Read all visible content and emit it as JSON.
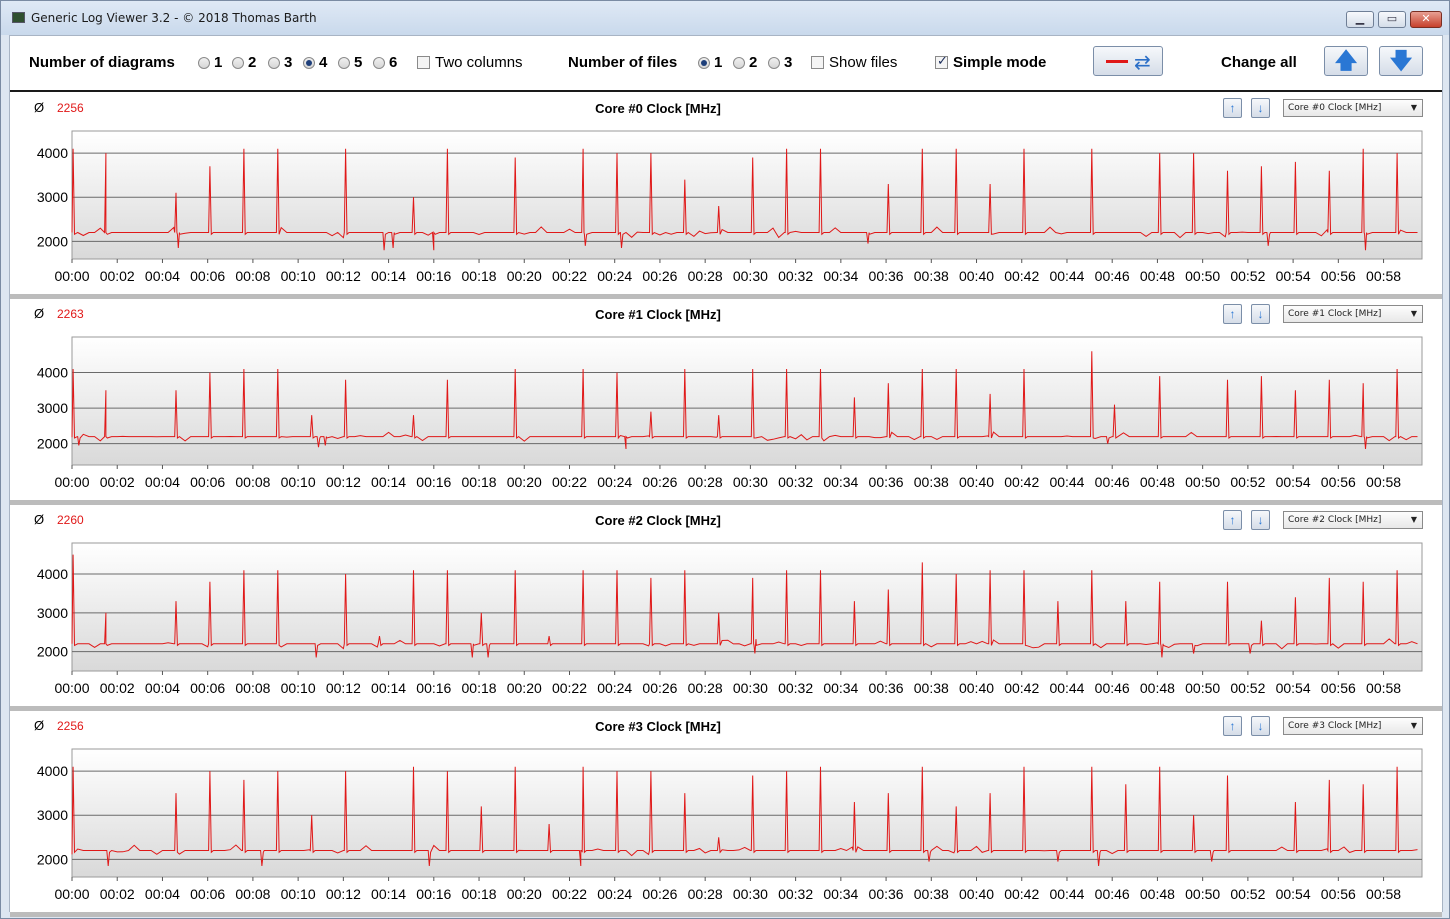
{
  "window": {
    "title": "Generic Log Viewer 3.2 - © 2018 Thomas Barth",
    "minimize_icon": "minimize-icon",
    "maximize_icon": "maximize-icon",
    "close_icon": "close-icon",
    "minimize_glyph": "▁",
    "maximize_glyph": "▭",
    "close_glyph": "✕"
  },
  "toolbar": {
    "diagrams_label": "Number of diagrams",
    "diagram_options": [
      "1",
      "2",
      "3",
      "4",
      "5",
      "6"
    ],
    "diagrams_selected": "4",
    "two_columns_label": "Two columns",
    "two_columns_checked": false,
    "files_label": "Number of files",
    "file_options": [
      "1",
      "2",
      "3"
    ],
    "files_selected": "1",
    "show_files_label": "Show files",
    "show_files_checked": false,
    "simple_mode_label": "Simple mode",
    "simple_mode_checked": true,
    "change_all_label": "Change all",
    "sync_glyph": "⇄",
    "up_glyph": "🡅",
    "down_glyph": "🡇",
    "line_color": "#e01818"
  },
  "panels": [
    {
      "avg_symbol": "Ø",
      "avg_value": "2256",
      "title": "Core #0 Clock [MHz]",
      "select_value": "Core #0 Clock [MHz]",
      "up_glyph": "↑",
      "down_glyph": "↓",
      "caret": "▼"
    },
    {
      "avg_symbol": "Ø",
      "avg_value": "2263",
      "title": "Core #1 Clock [MHz]",
      "select_value": "Core #1 Clock [MHz]",
      "up_glyph": "↑",
      "down_glyph": "↓",
      "caret": "▼"
    },
    {
      "avg_symbol": "Ø",
      "avg_value": "2260",
      "title": "Core #2 Clock [MHz]",
      "select_value": "Core #2 Clock [MHz]",
      "up_glyph": "↑",
      "down_glyph": "↓",
      "caret": "▼"
    },
    {
      "avg_symbol": "Ø",
      "avg_value": "2256",
      "title": "Core #3 Clock [MHz]",
      "select_value": "Core #3 Clock [MHz]",
      "up_glyph": "↑",
      "down_glyph": "↓",
      "caret": "▼"
    }
  ],
  "chart_data": [
    {
      "type": "line",
      "title": "Core #0 Clock [MHz]",
      "xlabel": "",
      "ylabel": "",
      "x_ticks": [
        "00:00",
        "00:02",
        "00:04",
        "00:06",
        "00:08",
        "00:10",
        "00:12",
        "00:14",
        "00:16",
        "00:18",
        "00:20",
        "00:22",
        "00:24",
        "00:26",
        "00:28",
        "00:30",
        "00:32",
        "00:34",
        "00:36",
        "00:38",
        "00:40",
        "00:42",
        "00:44",
        "00:46",
        "00:48",
        "00:50",
        "00:52",
        "00:54",
        "00:56",
        "00:58"
      ],
      "y_ticks": [
        2000,
        3000,
        4000
      ],
      "ylim": [
        1600,
        4500
      ],
      "xlim_minutes": [
        0,
        59.7
      ],
      "baseline": 2200,
      "color": "#e01818",
      "spikes": [
        [
          0.05,
          4100
        ],
        [
          1.5,
          4000
        ],
        [
          4.6,
          3100
        ],
        [
          6.1,
          3700
        ],
        [
          7.6,
          4100
        ],
        [
          9.1,
          4100
        ],
        [
          12.1,
          4100
        ],
        [
          15.1,
          3000
        ],
        [
          16.6,
          4100
        ],
        [
          19.6,
          3900
        ],
        [
          22.6,
          4100
        ],
        [
          24.1,
          4000
        ],
        [
          25.6,
          4000
        ],
        [
          27.1,
          3400
        ],
        [
          28.6,
          2800
        ],
        [
          30.1,
          3900
        ],
        [
          31.6,
          4100
        ],
        [
          33.1,
          4100
        ],
        [
          36.1,
          3300
        ],
        [
          37.6,
          4100
        ],
        [
          39.1,
          4100
        ],
        [
          40.6,
          3300
        ],
        [
          42.1,
          4100
        ],
        [
          45.1,
          4100
        ],
        [
          48.1,
          4000
        ],
        [
          49.6,
          4000
        ],
        [
          51.1,
          3600
        ],
        [
          52.6,
          3700
        ],
        [
          54.1,
          3800
        ],
        [
          55.6,
          3600
        ],
        [
          57.1,
          4100
        ],
        [
          58.6,
          4000
        ]
      ],
      "dips": [
        [
          4.7,
          1850
        ],
        [
          13.8,
          1800
        ],
        [
          14.2,
          1850
        ],
        [
          16.0,
          1800
        ],
        [
          22.7,
          1900
        ],
        [
          24.3,
          1850
        ],
        [
          35.2,
          1950
        ],
        [
          57.2,
          1800
        ],
        [
          52.9,
          1900
        ]
      ]
    },
    {
      "type": "line",
      "title": "Core #1 Clock [MHz]",
      "xlabel": "",
      "ylabel": "",
      "x_ticks": [
        "00:00",
        "00:02",
        "00:04",
        "00:06",
        "00:08",
        "00:10",
        "00:12",
        "00:14",
        "00:16",
        "00:18",
        "00:20",
        "00:22",
        "00:24",
        "00:26",
        "00:28",
        "00:30",
        "00:32",
        "00:34",
        "00:36",
        "00:38",
        "00:40",
        "00:42",
        "00:44",
        "00:46",
        "00:48",
        "00:50",
        "00:52",
        "00:54",
        "00:56",
        "00:58"
      ],
      "y_ticks": [
        2000,
        3000,
        4000
      ],
      "ylim": [
        1400,
        5000
      ],
      "xlim_minutes": [
        0,
        59.7
      ],
      "baseline": 2200,
      "color": "#e01818",
      "spikes": [
        [
          0.05,
          4100
        ],
        [
          1.5,
          3500
        ],
        [
          4.6,
          3500
        ],
        [
          6.1,
          4000
        ],
        [
          7.6,
          4100
        ],
        [
          9.1,
          4100
        ],
        [
          10.6,
          2800
        ],
        [
          12.1,
          3800
        ],
        [
          15.1,
          2800
        ],
        [
          16.6,
          3800
        ],
        [
          19.6,
          4100
        ],
        [
          22.6,
          4100
        ],
        [
          24.1,
          4000
        ],
        [
          25.6,
          2900
        ],
        [
          27.1,
          4100
        ],
        [
          28.6,
          2800
        ],
        [
          30.1,
          4100
        ],
        [
          31.6,
          4100
        ],
        [
          33.1,
          4100
        ],
        [
          34.6,
          3300
        ],
        [
          36.1,
          3700
        ],
        [
          37.6,
          4100
        ],
        [
          39.1,
          4100
        ],
        [
          40.6,
          3400
        ],
        [
          42.1,
          4100
        ],
        [
          45.1,
          4600
        ],
        [
          46.1,
          3100
        ],
        [
          48.1,
          3900
        ],
        [
          51.1,
          3800
        ],
        [
          52.6,
          3900
        ],
        [
          54.1,
          3500
        ],
        [
          55.6,
          3800
        ],
        [
          57.1,
          3700
        ],
        [
          58.6,
          4100
        ]
      ],
      "dips": [
        [
          0.3,
          1950
        ],
        [
          10.9,
          1900
        ],
        [
          11.2,
          1950
        ],
        [
          24.5,
          1850
        ],
        [
          57.2,
          1850
        ],
        [
          45.8,
          2000
        ]
      ]
    },
    {
      "type": "line",
      "title": "Core #2 Clock [MHz]",
      "xlabel": "",
      "ylabel": "",
      "x_ticks": [
        "00:00",
        "00:02",
        "00:04",
        "00:06",
        "00:08",
        "00:10",
        "00:12",
        "00:14",
        "00:16",
        "00:18",
        "00:20",
        "00:22",
        "00:24",
        "00:26",
        "00:28",
        "00:30",
        "00:32",
        "00:34",
        "00:36",
        "00:38",
        "00:40",
        "00:42",
        "00:44",
        "00:46",
        "00:48",
        "00:50",
        "00:52",
        "00:54",
        "00:56",
        "00:58"
      ],
      "y_ticks": [
        2000,
        3000,
        4000
      ],
      "ylim": [
        1500,
        4800
      ],
      "xlim_minutes": [
        0,
        59.7
      ],
      "baseline": 2200,
      "color": "#e01818",
      "spikes": [
        [
          0.05,
          4500
        ],
        [
          1.5,
          3000
        ],
        [
          4.6,
          3300
        ],
        [
          6.1,
          3800
        ],
        [
          7.6,
          4100
        ],
        [
          9.1,
          4100
        ],
        [
          12.1,
          4000
        ],
        [
          13.6,
          2400
        ],
        [
          15.1,
          4100
        ],
        [
          16.6,
          4100
        ],
        [
          18.1,
          3000
        ],
        [
          19.6,
          4100
        ],
        [
          21.1,
          2400
        ],
        [
          22.6,
          4100
        ],
        [
          24.1,
          4100
        ],
        [
          25.6,
          3900
        ],
        [
          27.1,
          4100
        ],
        [
          28.6,
          3000
        ],
        [
          30.1,
          3900
        ],
        [
          31.6,
          4100
        ],
        [
          33.1,
          4100
        ],
        [
          34.6,
          3300
        ],
        [
          36.1,
          3600
        ],
        [
          37.6,
          4300
        ],
        [
          39.1,
          4000
        ],
        [
          40.6,
          4100
        ],
        [
          42.1,
          4100
        ],
        [
          43.6,
          3300
        ],
        [
          45.1,
          4100
        ],
        [
          46.6,
          3300
        ],
        [
          48.1,
          3800
        ],
        [
          51.1,
          3800
        ],
        [
          52.6,
          2800
        ],
        [
          54.1,
          3400
        ],
        [
          55.6,
          3900
        ],
        [
          57.1,
          3800
        ],
        [
          58.6,
          4100
        ]
      ],
      "dips": [
        [
          10.8,
          1850
        ],
        [
          17.7,
          1850
        ],
        [
          18.4,
          1850
        ],
        [
          30.2,
          1950
        ],
        [
          48.2,
          1850
        ],
        [
          49.6,
          1950
        ],
        [
          52.1,
          1950
        ]
      ]
    },
    {
      "type": "line",
      "title": "Core #3 Clock [MHz]",
      "xlabel": "",
      "ylabel": "",
      "x_ticks": [
        "00:00",
        "00:02",
        "00:04",
        "00:06",
        "00:08",
        "00:10",
        "00:12",
        "00:14",
        "00:16",
        "00:18",
        "00:20",
        "00:22",
        "00:24",
        "00:26",
        "00:28",
        "00:30",
        "00:32",
        "00:34",
        "00:36",
        "00:38",
        "00:40",
        "00:42",
        "00:44",
        "00:46",
        "00:48",
        "00:50",
        "00:52",
        "00:54",
        "00:56",
        "00:58"
      ],
      "y_ticks": [
        2000,
        3000,
        4000
      ],
      "ylim": [
        1600,
        4500
      ],
      "xlim_minutes": [
        0,
        59.7
      ],
      "baseline": 2200,
      "color": "#e01818",
      "spikes": [
        [
          0.05,
          4100
        ],
        [
          4.6,
          3500
        ],
        [
          6.1,
          4000
        ],
        [
          7.6,
          3800
        ],
        [
          9.1,
          4000
        ],
        [
          10.6,
          3000
        ],
        [
          12.1,
          4000
        ],
        [
          15.1,
          4100
        ],
        [
          16.6,
          4000
        ],
        [
          18.1,
          3200
        ],
        [
          19.6,
          4100
        ],
        [
          21.1,
          2800
        ],
        [
          22.6,
          4100
        ],
        [
          24.1,
          4000
        ],
        [
          25.6,
          4000
        ],
        [
          27.1,
          3500
        ],
        [
          28.6,
          2500
        ],
        [
          30.1,
          3900
        ],
        [
          31.6,
          4000
        ],
        [
          33.1,
          4100
        ],
        [
          34.6,
          3300
        ],
        [
          36.1,
          3500
        ],
        [
          37.6,
          4100
        ],
        [
          39.1,
          3200
        ],
        [
          40.6,
          3500
        ],
        [
          42.1,
          4100
        ],
        [
          45.1,
          4100
        ],
        [
          46.6,
          3700
        ],
        [
          48.1,
          4100
        ],
        [
          49.6,
          3000
        ],
        [
          51.1,
          3900
        ],
        [
          54.1,
          3300
        ],
        [
          55.6,
          3800
        ],
        [
          57.1,
          3700
        ],
        [
          58.6,
          4100
        ]
      ],
      "dips": [
        [
          1.6,
          1850
        ],
        [
          8.4,
          1850
        ],
        [
          15.8,
          1850
        ],
        [
          22.5,
          1850
        ],
        [
          37.9,
          1950
        ],
        [
          43.6,
          1950
        ],
        [
          45.4,
          1850
        ],
        [
          50.4,
          1950
        ]
      ]
    }
  ]
}
